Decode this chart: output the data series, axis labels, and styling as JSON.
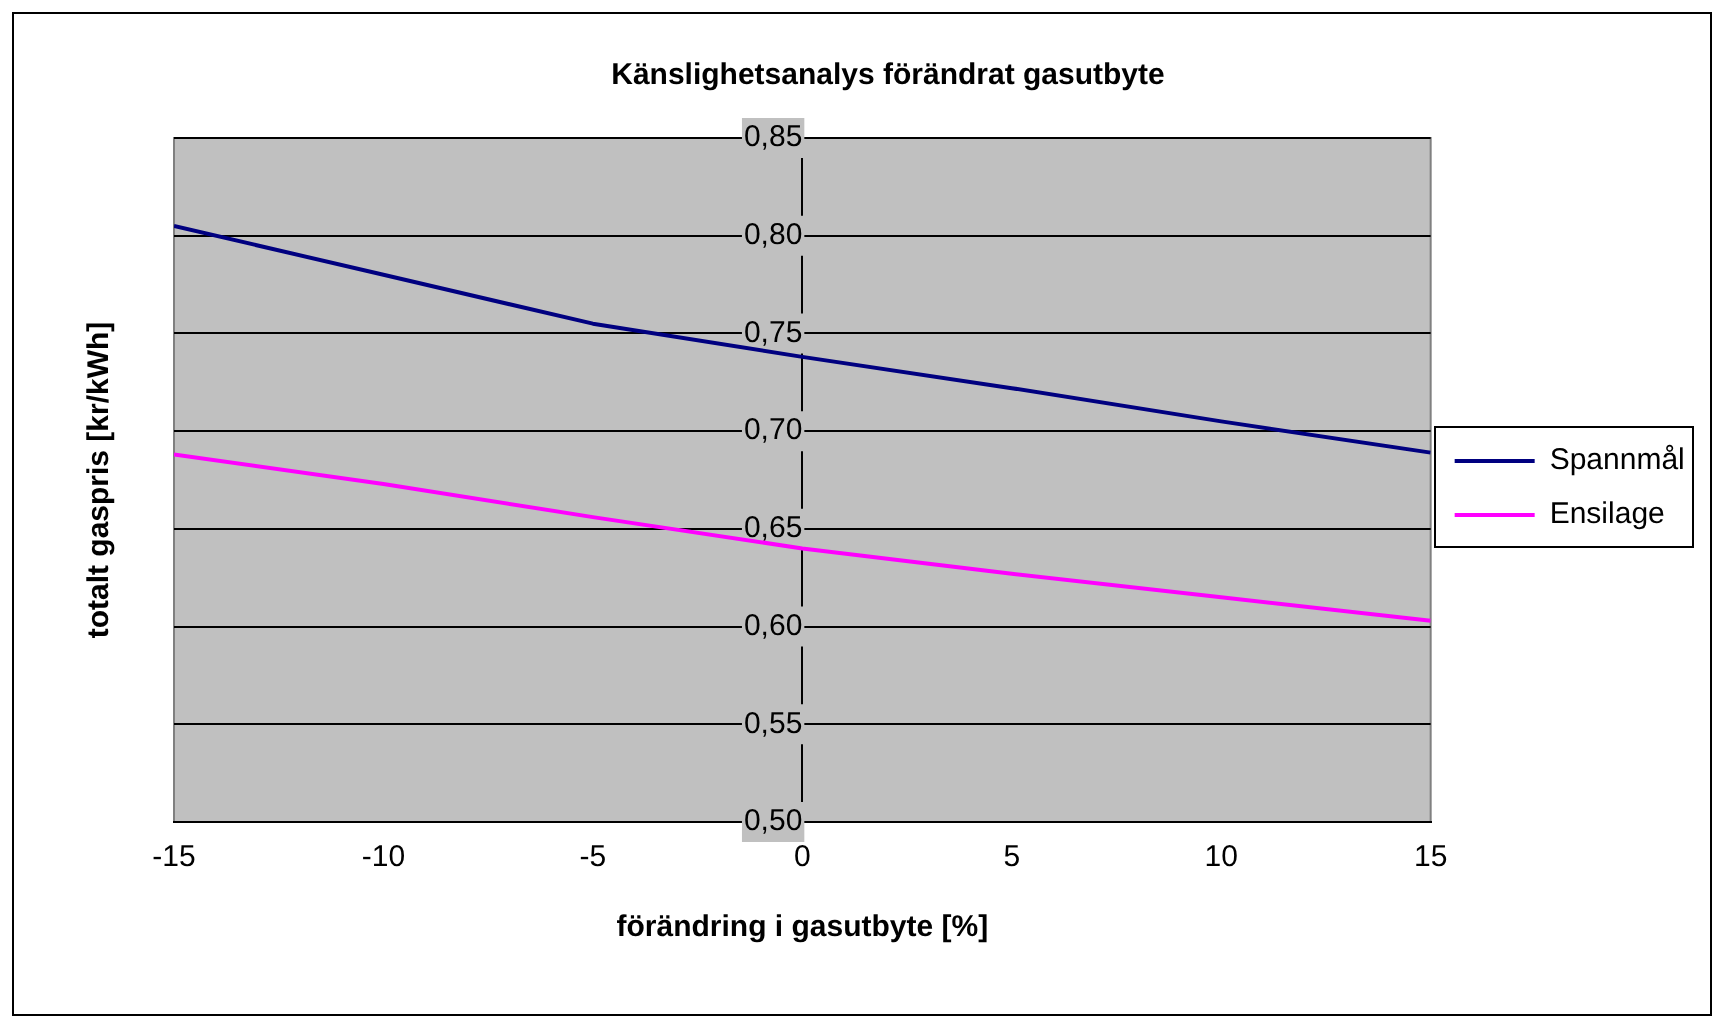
{
  "chart_data": {
    "type": "line",
    "title": "Känslighetsanalys förändrat gasutbyte",
    "xlabel": "förändring i gasutbyte [%]",
    "ylabel": "totalt gaspris [kr/kWh]",
    "x": [
      -15,
      -10,
      -5,
      0,
      5,
      10,
      15
    ],
    "series": [
      {
        "name": "Spannmål",
        "color": "#000080",
        "values": [
          0.805,
          0.78,
          0.755,
          0.738,
          0.722,
          0.705,
          0.689
        ]
      },
      {
        "name": "Ensilage",
        "color": "#ff00ff",
        "values": [
          0.688,
          0.673,
          0.656,
          0.64,
          0.627,
          0.615,
          0.603
        ]
      }
    ],
    "xlim": [
      -15,
      15
    ],
    "xticks": [
      -15,
      -10,
      -5,
      0,
      5,
      10,
      15
    ],
    "ylim": [
      0.5,
      0.85
    ],
    "yticks": [
      {
        "value": 0.5,
        "label": "0,50"
      },
      {
        "value": 0.55,
        "label": "0,55"
      },
      {
        "value": 0.6,
        "label": "0,60"
      },
      {
        "value": 0.65,
        "label": "0,65"
      },
      {
        "value": 0.7,
        "label": "0,70"
      },
      {
        "value": 0.75,
        "label": "0,75"
      },
      {
        "value": 0.8,
        "label": "0,80"
      },
      {
        "value": 0.85,
        "label": "0,85"
      }
    ],
    "grid": "y",
    "legend": "right",
    "marker": "none",
    "line_style": "solid"
  }
}
